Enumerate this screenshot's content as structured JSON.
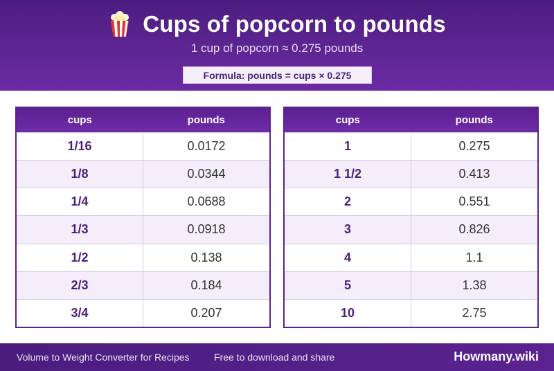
{
  "header": {
    "icon": "popcorn-icon",
    "title": "Cups of popcorn to pounds",
    "subtitle": "1 cup of popcorn ≈ 0.275 pounds",
    "formula": "Formula: pounds = cups × 0.275"
  },
  "tables": [
    {
      "col_cups": "cups",
      "col_pounds": "pounds",
      "rows": [
        {
          "cups": "1/16",
          "pounds": "0.0172"
        },
        {
          "cups": "1/8",
          "pounds": "0.0344"
        },
        {
          "cups": "1/4",
          "pounds": "0.0688"
        },
        {
          "cups": "1/3",
          "pounds": "0.0918"
        },
        {
          "cups": "1/2",
          "pounds": "0.138"
        },
        {
          "cups": "2/3",
          "pounds": "0.184"
        },
        {
          "cups": "3/4",
          "pounds": "0.207"
        }
      ]
    },
    {
      "col_cups": "cups",
      "col_pounds": "pounds",
      "rows": [
        {
          "cups": "1",
          "pounds": "0.275"
        },
        {
          "cups": "1 1/2",
          "pounds": "0.413"
        },
        {
          "cups": "2",
          "pounds": "0.551"
        },
        {
          "cups": "3",
          "pounds": "0.826"
        },
        {
          "cups": "4",
          "pounds": "1.1"
        },
        {
          "cups": "5",
          "pounds": "1.38"
        },
        {
          "cups": "10",
          "pounds": "2.75"
        }
      ]
    }
  ],
  "footer": {
    "left_text": "Volume to Weight Converter for Recipes",
    "mid_text": "Free to download and share",
    "brand": "Howmany.wiki"
  },
  "colors": {
    "header_bg": "#5e2593",
    "accent_text": "#4a1f7a",
    "row_alt": "#f3eef9"
  }
}
